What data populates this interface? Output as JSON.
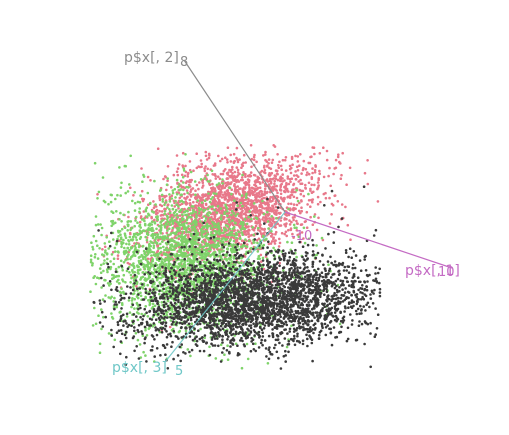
{
  "chart_data": {
    "type": "scatter",
    "projection": "3d",
    "axes": [
      {
        "label": "p$x[, 2]",
        "tick": "8",
        "color": "#8c8c8c"
      },
      {
        "label": "p$x[, 1]",
        "tick": "10",
        "near_origin_tick": "-10",
        "color": "#c46bc4"
      },
      {
        "label": "p$x[, 3]",
        "tick": "5",
        "color": "#6fc7c7"
      }
    ],
    "series": [
      {
        "color": "#e8788a",
        "point_count": 2200
      },
      {
        "color": "#7fd36a",
        "point_count": 2400
      },
      {
        "color": "#3a3a3a",
        "point_count": 3200
      }
    ],
    "grid": false,
    "legend": "none"
  }
}
